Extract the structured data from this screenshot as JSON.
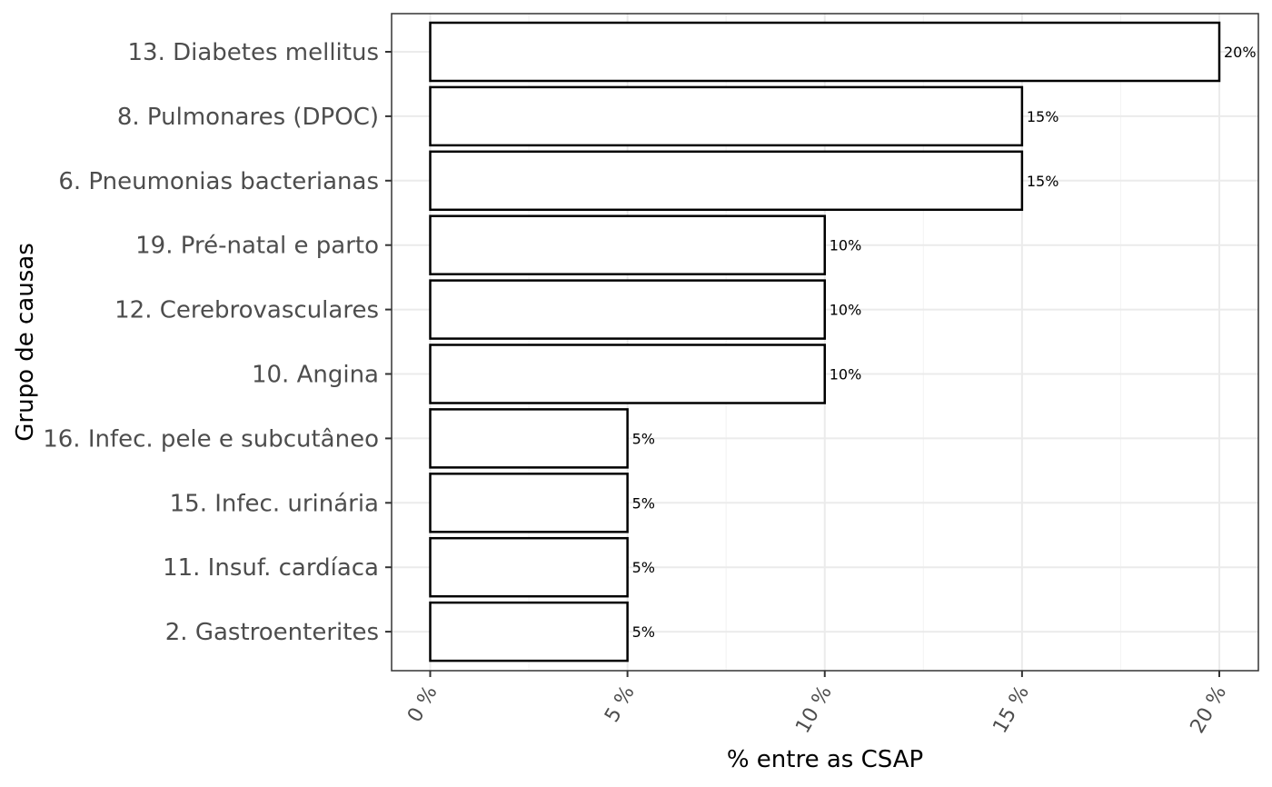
{
  "chart_data": {
    "type": "bar",
    "orientation": "horizontal",
    "title": "",
    "xlabel": "% entre as CSAP",
    "ylabel": "Grupo de causas",
    "xlim": [
      0,
      22
    ],
    "x_ticks": [
      0,
      5,
      10,
      15,
      20
    ],
    "x_tick_labels": [
      "0 %",
      "5 %",
      "10 %",
      "15 %",
      "20 %"
    ],
    "grid": true,
    "categories": [
      "13. Diabetes mellitus",
      "8. Pulmonares (DPOC)",
      "6. Pneumonias bacterianas",
      "19. Pré-natal e parto",
      "12. Cerebrovasculares",
      "10. Angina",
      "16. Infec. pele e subcutâneo",
      "15. Infec. urinária",
      "11. Insuf. cardíaca",
      "2. Gastroenterites"
    ],
    "values": [
      20,
      15,
      15,
      10,
      10,
      10,
      5,
      5,
      5,
      5
    ],
    "data_labels": [
      "20%",
      "15%",
      "15%",
      "10%",
      "10%",
      "10%",
      "5%",
      "5%",
      "5%",
      "5%"
    ],
    "colors": {
      "bar_fill": "#ffffff",
      "bar_stroke": "#000000",
      "grid_major": "#ebebeb",
      "grid_minor": "#f4f4f4",
      "panel_border": "#333333",
      "tick_text": "#4d4d4d"
    }
  }
}
